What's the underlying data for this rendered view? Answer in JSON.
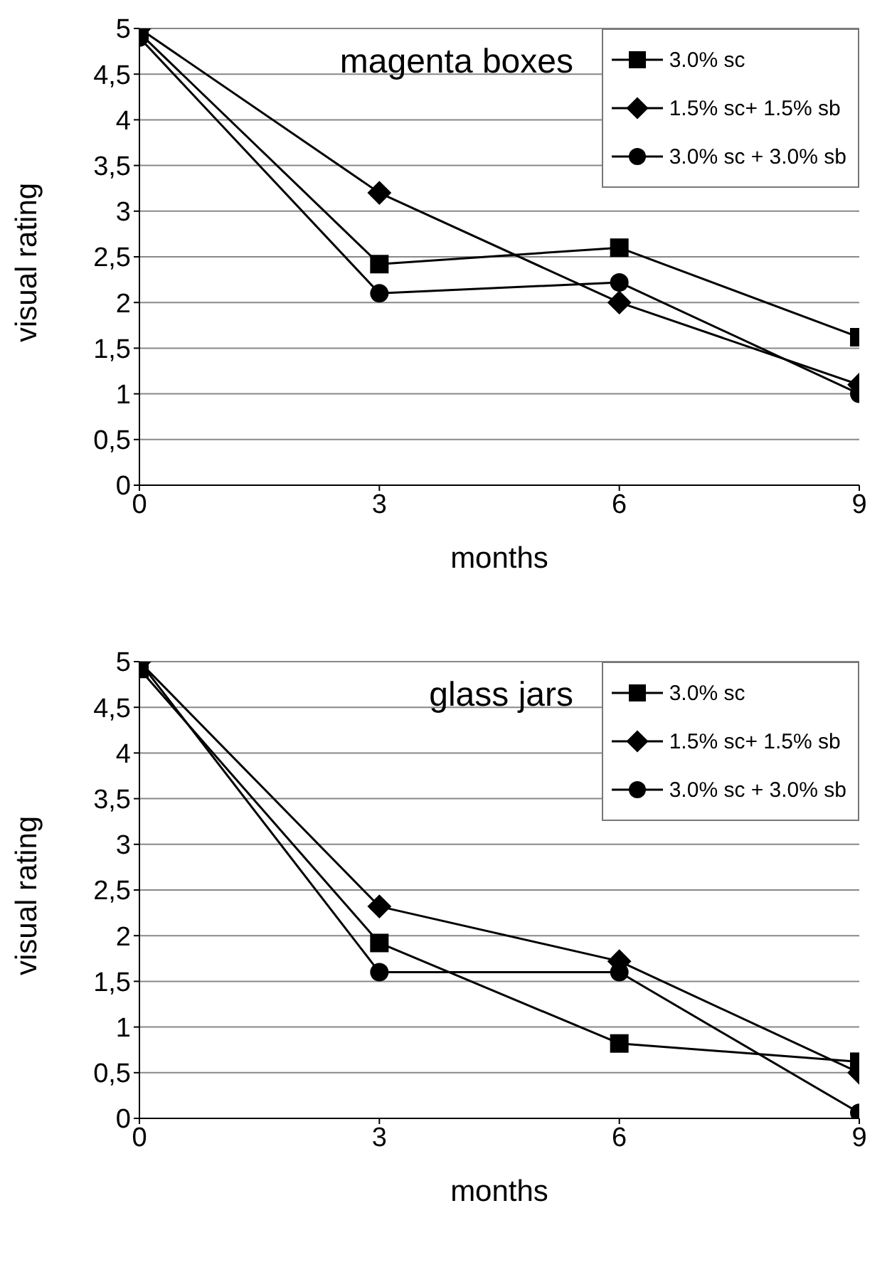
{
  "chart_data": [
    {
      "type": "line",
      "title": "magenta boxes",
      "xlabel": "months",
      "ylabel": "visual rating",
      "x": [
        0,
        3,
        6,
        9
      ],
      "series": [
        {
          "name": "3.0% sc",
          "color": "#000000",
          "marker": "square",
          "values": [
            4.95,
            2.42,
            2.6,
            1.62
          ]
        },
        {
          "name": "1.5% sc+ 1.5% sb",
          "color": "#000000",
          "marker": "diamond",
          "values": [
            5.0,
            3.2,
            2.0,
            1.1
          ]
        },
        {
          "name": "3.0% sc + 3.0% sb",
          "color": "#000000",
          "marker": "circle",
          "values": [
            4.9,
            2.1,
            2.22,
            1.0
          ]
        }
      ],
      "xlim": [
        0,
        9
      ],
      "xticks": [
        0,
        3,
        6,
        9
      ],
      "ylim": [
        0,
        5
      ],
      "yticks": [
        0,
        {
          "value": 0.5,
          "label": "0,5"
        },
        1,
        {
          "value": 1.5,
          "label": "1,5"
        },
        2,
        {
          "value": 2.5,
          "label": "2,5"
        },
        3,
        {
          "value": 3.5,
          "label": "3,5"
        },
        4,
        {
          "value": 4.5,
          "label": "4,5"
        },
        5
      ],
      "grid": "y",
      "legend": "top right",
      "line_style": "solid"
    },
    {
      "type": "line",
      "title": "glass jars",
      "xlabel": "months",
      "ylabel": "visual rating",
      "x": [
        0,
        3,
        6,
        9
      ],
      "series": [
        {
          "name": "3.0% sc",
          "color": "#000000",
          "marker": "square",
          "values": [
            4.92,
            1.92,
            0.82,
            0.62
          ]
        },
        {
          "name": "1.5% sc+ 1.5% sb",
          "color": "#000000",
          "marker": "diamond",
          "values": [
            5.0,
            2.32,
            1.72,
            0.5
          ]
        },
        {
          "name": "3.0% sc + 3.0% sb",
          "color": "#000000",
          "marker": "circle",
          "values": [
            5.0,
            1.6,
            1.6,
            0.06
          ]
        }
      ],
      "xlim": [
        0,
        9
      ],
      "xticks": [
        0,
        3,
        6,
        9
      ],
      "ylim": [
        0,
        5
      ],
      "yticks": [
        0,
        {
          "value": 0.5,
          "label": "0,5"
        },
        1,
        {
          "value": 1.5,
          "label": "1,5"
        },
        2,
        {
          "value": 2.5,
          "label": "2,5"
        },
        3,
        {
          "value": 3.5,
          "label": "3,5"
        },
        4,
        {
          "value": 4.5,
          "label": "4,5"
        },
        5
      ],
      "grid": "y",
      "legend": "top right",
      "line_style": "solid"
    }
  ]
}
